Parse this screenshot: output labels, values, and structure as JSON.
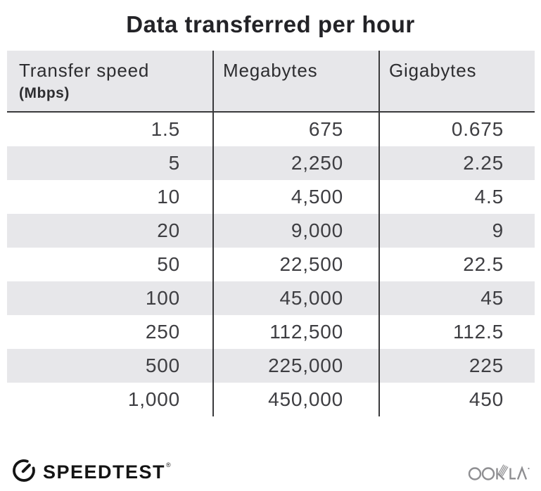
{
  "title": "Data transferred per hour",
  "chart_data": {
    "type": "table",
    "title": "Data transferred per hour",
    "columns": [
      "Transfer speed (Mbps)",
      "Megabytes",
      "Gigabytes"
    ],
    "rows": [
      [
        1.5,
        675,
        0.675
      ],
      [
        5,
        2250,
        2.25
      ],
      [
        10,
        4500,
        4.5
      ],
      [
        20,
        9000,
        9
      ],
      [
        50,
        22500,
        22.5
      ],
      [
        100,
        45000,
        45
      ],
      [
        250,
        112500,
        112.5
      ],
      [
        500,
        225000,
        225
      ],
      [
        1000,
        450000,
        450
      ]
    ]
  },
  "table": {
    "header": {
      "col0_label": "Transfer speed",
      "col0_sublabel": "(Mbps)",
      "col1_label": "Megabytes",
      "col2_label": "Gigabytes"
    },
    "rows_display": [
      [
        "1.5",
        "675",
        "0.675"
      ],
      [
        "5",
        "2,250",
        "2.25"
      ],
      [
        "10",
        "4,500",
        "4.5"
      ],
      [
        "20",
        "9,000",
        "9"
      ],
      [
        "50",
        "22,500",
        "22.5"
      ],
      [
        "100",
        "45,000",
        "45"
      ],
      [
        "250",
        "112,500",
        "112.5"
      ],
      [
        "500",
        "225,000",
        "225"
      ],
      [
        "1,000",
        "450,000",
        "450"
      ]
    ]
  },
  "footer": {
    "speedtest_label": "SPEEDTEST",
    "speedtest_mark": "®",
    "ookla_label": "OOKLA"
  },
  "colors": {
    "stripe_gray": "#e7e7ea",
    "divider_dark": "#3a3a3c",
    "title_text": "#232327",
    "cell_text": "#3e3e42",
    "speedtest_black": "#141414",
    "ookla_gray": "#8e8e91"
  }
}
